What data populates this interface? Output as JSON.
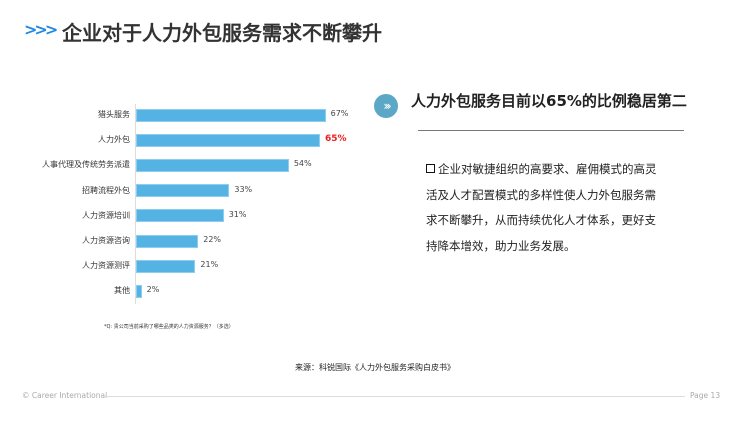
{
  "header": {
    "title": "企业对于人力外包服务需求不断攀升",
    "icon": "triple-chevron-icon",
    "accent": "#1e88e5"
  },
  "chart_data": {
    "type": "bar",
    "orientation": "horizontal",
    "categories": [
      "猎头服务",
      "人力外包",
      "人事代理及传统劳务派遣",
      "招聘流程外包",
      "人力资源培训",
      "人力资源咨询",
      "人力资源测评",
      "其他"
    ],
    "values": [
      67,
      65,
      54,
      33,
      31,
      22,
      21,
      2
    ],
    "labels": [
      "67%",
      "65%",
      "54%",
      "33%",
      "31%",
      "22%",
      "21%",
      "2%"
    ],
    "highlight_index": 1,
    "highlight_color": "#e82020",
    "bar_color": "#55b3e4",
    "xlim": [
      0,
      100
    ],
    "grid": false,
    "footnote": "*Q: 贵公司当前采购了哪些品类的人力资源服务？（多选）"
  },
  "insight": {
    "subtitle": "人力外包服务目前以65%的比例稳居第二",
    "body": "企业对敏捷组织的高要求、雇佣模式的高灵活及人才配置模式的多样性使人力外包服务需求不断攀升，从而持续优化人才体系，更好支持降本增效，助力业务发展。"
  },
  "source": "来源：科锐国际《人力外包服务采购白皮书》",
  "footer": {
    "copyright": "© Career International",
    "page": "Page 13"
  }
}
